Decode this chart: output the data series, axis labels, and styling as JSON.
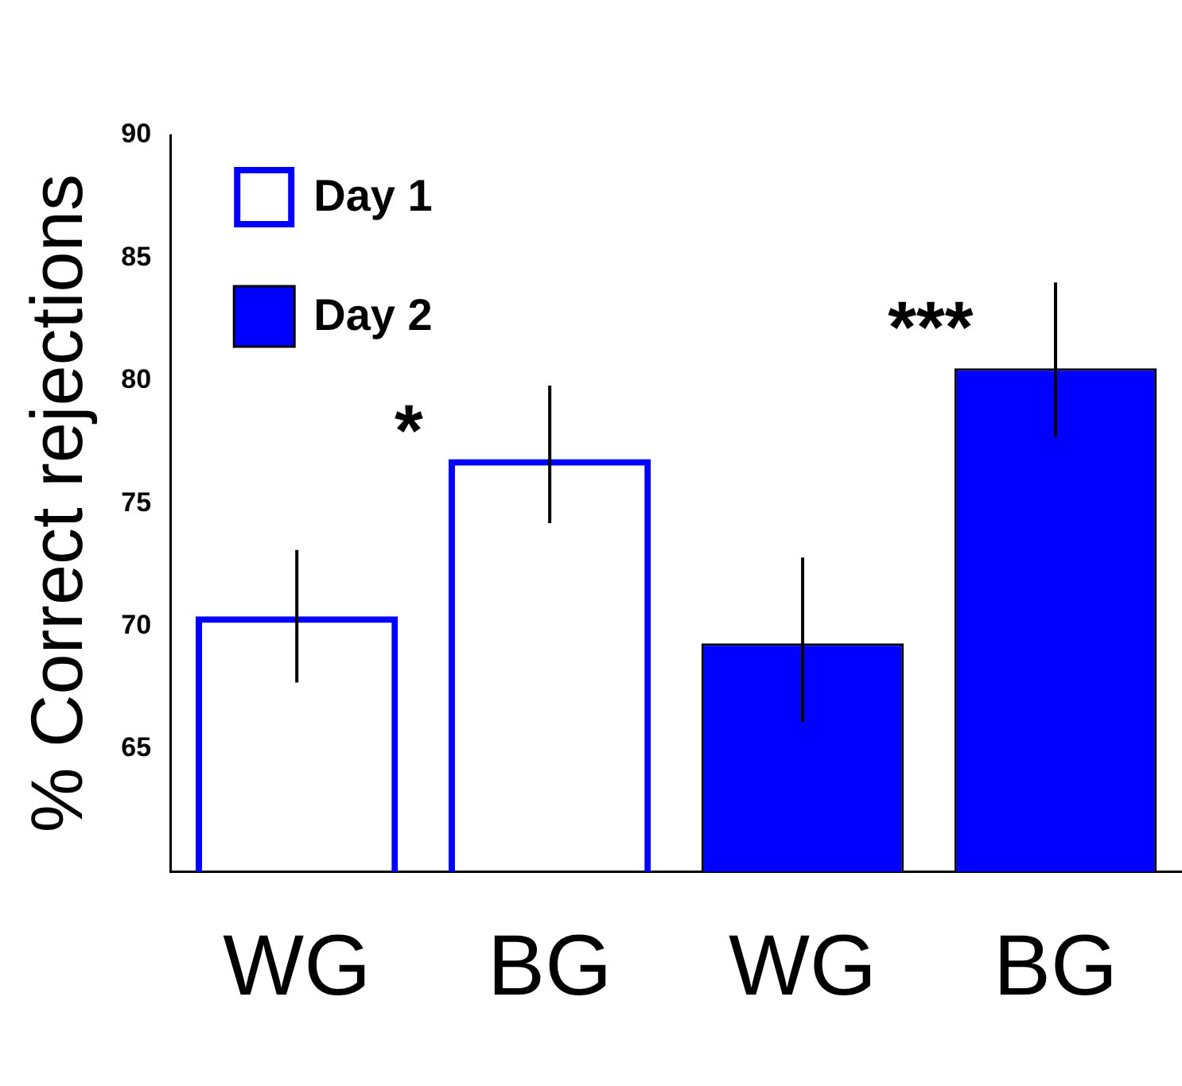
{
  "chart_data": {
    "type": "bar",
    "ylabel": "% Correct rejections",
    "categories": [
      "WG",
      "BG",
      "WG",
      "BG"
    ],
    "series": [
      {
        "name": "Day 1",
        "color": "#0000ff",
        "values": [
          70.4,
          76.8,
          null,
          null
        ],
        "errors": [
          [
            67.7,
            73.1
          ],
          [
            74.2,
            79.8
          ],
          null,
          null
        ]
      },
      {
        "name": "Day 2",
        "color": "#0000ff",
        "values": [
          null,
          null,
          69.3,
          80.5
        ],
        "errors": [
          null,
          null,
          [
            66.1,
            72.8
          ],
          [
            77.7,
            84.0
          ]
        ]
      }
    ],
    "ylim": [
      60,
      90
    ],
    "yticks": [
      65,
      70,
      75,
      80,
      85,
      90
    ],
    "grid": false,
    "legend": "top left",
    "annotations": [
      "*",
      "***"
    ]
  }
}
